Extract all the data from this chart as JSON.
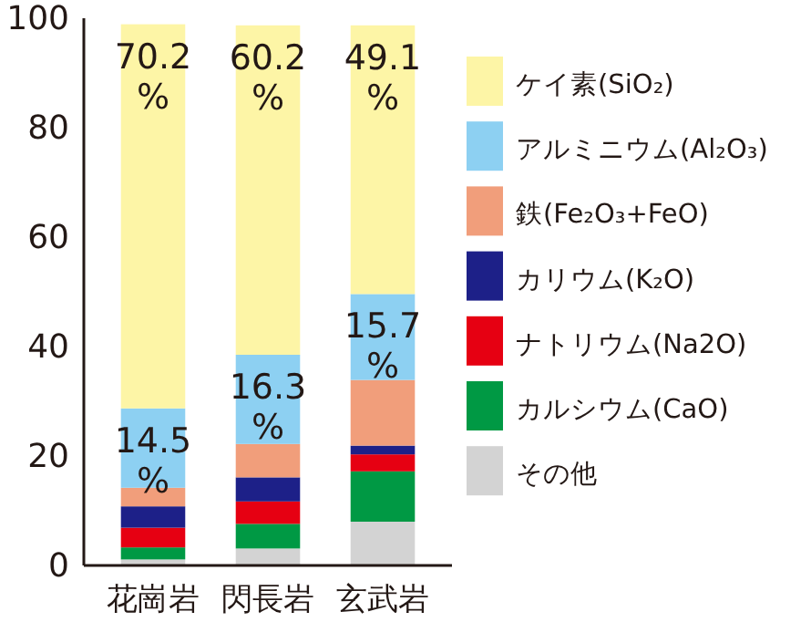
{
  "chart_data": {
    "type": "bar",
    "stacked": true,
    "categories": [
      "花崗岩",
      "閃長岩",
      "玄武岩"
    ],
    "ylim": [
      0,
      100
    ],
    "yticks": [
      0,
      20,
      40,
      60,
      80,
      100
    ],
    "legend": "right",
    "series": [
      {
        "name": "その他",
        "color": "#d3d3d3",
        "values": [
          1.1,
          3.1,
          8.0
        ]
      },
      {
        "name": "カルシウム(CaO)",
        "color": "#009944",
        "values": [
          2.2,
          4.5,
          9.2
        ]
      },
      {
        "name": "ナトリウム(Na2O)",
        "color": "#e60012",
        "values": [
          3.6,
          4.1,
          3.1
        ]
      },
      {
        "name": "カリウム(K₂O)",
        "color": "#1d2088",
        "values": [
          3.9,
          4.4,
          1.6
        ]
      },
      {
        "name": "鉄(Fe₂O₃+FeO)",
        "color": "#f19e7b",
        "values": [
          3.4,
          6.1,
          12.0
        ]
      },
      {
        "name": "アルミニウム(Al₂O₃)",
        "color": "#8dd0f2",
        "values": [
          14.5,
          16.3,
          15.7
        ],
        "value_labels": [
          "14.5%",
          "16.3%",
          "15.7%"
        ]
      },
      {
        "name": "ケイ素(SiO₂)",
        "color": "#fdf5a6",
        "values": [
          70.2,
          60.2,
          49.1
        ],
        "value_labels": [
          "70.2%",
          "60.2%",
          "49.1%"
        ]
      }
    ]
  }
}
